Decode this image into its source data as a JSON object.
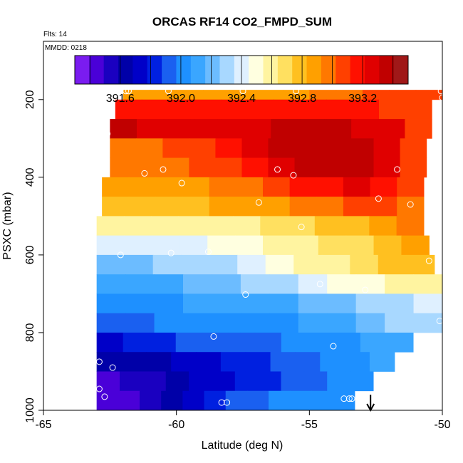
{
  "chart_data": {
    "type": "heatmap",
    "title": "ORCAS RF14 CO2_FMPD_SUM",
    "annotation_flts": "Flts: 14",
    "annotation_mmdd": "MMDD: 0218",
    "xlabel": "Latitude (deg N)",
    "ylabel": "PSXC (mbar)",
    "xlim": [
      -65,
      -50
    ],
    "ylim": [
      1000,
      50
    ],
    "x_ticks": [
      -65,
      -60,
      -55,
      -50
    ],
    "x_tick_labels": [
      "-65",
      "-60",
      "-55",
      "-50"
    ],
    "y_ticks": [
      200,
      400,
      600,
      800,
      1000
    ],
    "y_tick_labels": [
      "200",
      "400",
      "600",
      "800",
      "1000"
    ],
    "colorbar": {
      "range": [
        391.3,
        393.5
      ],
      "ticks": [
        391.6,
        392.0,
        392.4,
        392.8,
        393.2
      ],
      "tick_labels": [
        "391.6",
        "392.0",
        "392.4",
        "392.8",
        "393.2"
      ],
      "colors": [
        "#7a1cf0",
        "#4a00d8",
        "#1a00c0",
        "#0000a8",
        "#0000c8",
        "#0020e0",
        "#1a60f0",
        "#1e90ff",
        "#3aa6ff",
        "#6cbcff",
        "#a8d8ff",
        "#dff0ff",
        "#ffffe0",
        "#fff4a0",
        "#ffe060",
        "#ffc020",
        "#ffa000",
        "#ff7800",
        "#ff4000",
        "#ff1000",
        "#e00000",
        "#c00000",
        "#a01818"
      ]
    },
    "rows": [
      {
        "p_top": 175,
        "p_bottom": 200,
        "x_start": -62.0,
        "x_end": -50.0,
        "levels": [
          392.9,
          392.85,
          392.85,
          392.85,
          392.9,
          392.9,
          392.9,
          392.95,
          393.0,
          393.05,
          393.1,
          393.1
        ]
      },
      {
        "p_top": 200,
        "p_bottom": 250,
        "x_start": -62.3,
        "x_end": -50.4,
        "levels": [
          393.2,
          393.15,
          393.15,
          393.2,
          393.2,
          393.2,
          393.2,
          393.2,
          393.2,
          393.15,
          393.1,
          393.05
        ]
      },
      {
        "p_top": 250,
        "p_bottom": 300,
        "x_start": -62.5,
        "x_end": -50.4,
        "levels": [
          393.35,
          393.3,
          393.3,
          393.3,
          393.3,
          393.3,
          393.35,
          393.35,
          393.35,
          393.3,
          393.25,
          393.1
        ]
      },
      {
        "p_top": 300,
        "p_bottom": 350,
        "x_start": -62.5,
        "x_end": -50.6,
        "levels": [
          393.0,
          393.0,
          393.05,
          393.1,
          393.15,
          393.25,
          393.35,
          393.4,
          393.4,
          393.35,
          393.25,
          393.05
        ]
      },
      {
        "p_top": 350,
        "p_bottom": 400,
        "x_start": -62.5,
        "x_end": -50.6,
        "levels": [
          392.95,
          392.95,
          393.0,
          393.05,
          393.1,
          393.2,
          393.3,
          393.35,
          393.4,
          393.4,
          393.3,
          393.1
        ]
      },
      {
        "p_top": 400,
        "p_bottom": 450,
        "x_start": -62.8,
        "x_end": -50.7,
        "levels": [
          392.85,
          392.85,
          392.9,
          392.9,
          392.95,
          393.0,
          393.05,
          393.15,
          393.2,
          393.25,
          393.2,
          393.05
        ]
      },
      {
        "p_top": 450,
        "p_bottom": 500,
        "x_start": -62.8,
        "x_end": -50.7,
        "levels": [
          392.75,
          392.75,
          392.8,
          392.8,
          392.85,
          392.85,
          392.9,
          392.95,
          393.0,
          393.05,
          393.1,
          393.0
        ]
      },
      {
        "p_top": 500,
        "p_bottom": 550,
        "x_start": -63.0,
        "x_end": -50.7,
        "levels": [
          392.6,
          392.6,
          392.6,
          392.6,
          392.6,
          392.6,
          392.65,
          392.7,
          392.75,
          392.8,
          392.9,
          392.95
        ]
      },
      {
        "p_top": 550,
        "p_bottom": 600,
        "x_start": -63.0,
        "x_end": -50.5,
        "levels": [
          392.4,
          392.4,
          392.4,
          392.4,
          392.45,
          392.5,
          392.55,
          392.6,
          392.65,
          392.7,
          392.8,
          392.9
        ]
      },
      {
        "p_top": 600,
        "p_bottom": 650,
        "x_start": -63.0,
        "x_end": -50.3,
        "levels": [
          392.25,
          392.25,
          392.3,
          392.3,
          392.35,
          392.4,
          392.45,
          392.55,
          392.6,
          392.7,
          392.75,
          392.8
        ]
      },
      {
        "p_top": 650,
        "p_bottom": 700,
        "x_start": -63.0,
        "x_end": -50.0,
        "levels": [
          392.1,
          392.1,
          392.15,
          392.2,
          392.25,
          392.3,
          392.35,
          392.4,
          392.45,
          392.5,
          392.55,
          392.6
        ]
      },
      {
        "p_top": 700,
        "p_bottom": 750,
        "x_start": -63.0,
        "x_end": -50.0,
        "levels": [
          392.05,
          392.05,
          392.05,
          392.1,
          392.1,
          392.15,
          392.15,
          392.2,
          392.25,
          392.3,
          392.35,
          392.4
        ]
      },
      {
        "p_top": 750,
        "p_bottom": 800,
        "x_start": -63.0,
        "x_end": -50.0,
        "levels": [
          391.95,
          391.95,
          392.0,
          392.0,
          392.0,
          392.05,
          392.05,
          392.1,
          392.15,
          392.2,
          392.3,
          392.35
        ]
      },
      {
        "p_top": 800,
        "p_bottom": 850,
        "x_start": -63.0,
        "x_end": -51.1,
        "levels": [
          391.75,
          391.8,
          391.85,
          391.9,
          391.9,
          391.95,
          391.95,
          392.0,
          392.05,
          392.05,
          392.1,
          392.1
        ]
      },
      {
        "p_top": 850,
        "p_bottom": 900,
        "x_start": -63.0,
        "x_end": -51.8,
        "levels": [
          391.6,
          391.65,
          391.65,
          391.7,
          391.75,
          391.8,
          391.85,
          391.9,
          391.95,
          392.0,
          392.05,
          392.1
        ]
      },
      {
        "p_top": 900,
        "p_bottom": 950,
        "x_start": -63.0,
        "x_end": -52.6,
        "levels": [
          391.45,
          391.5,
          391.55,
          391.6,
          391.7,
          391.75,
          391.8,
          391.85,
          391.9,
          391.95,
          392.0,
          392.05
        ]
      },
      {
        "p_top": 950,
        "p_bottom": 1000,
        "x_start": -63.0,
        "x_end": -53.3,
        "levels": [
          391.4,
          391.45,
          391.55,
          391.65,
          391.75,
          391.85,
          391.9,
          391.95,
          392.0,
          392.0,
          392.0,
          392.05
        ]
      }
    ],
    "observations": [
      {
        "lat": -61.9,
        "p": 178
      },
      {
        "lat": -61.8,
        "p": 178
      },
      {
        "lat": -60.3,
        "p": 178
      },
      {
        "lat": -57.5,
        "p": 178
      },
      {
        "lat": -55.5,
        "p": 178
      },
      {
        "lat": -50.05,
        "p": 178
      },
      {
        "lat": -50.0,
        "p": 195
      },
      {
        "lat": -62.6,
        "p": 288
      },
      {
        "lat": -50.0,
        "p": 292
      },
      {
        "lat": -61.2,
        "p": 390
      },
      {
        "lat": -60.5,
        "p": 380
      },
      {
        "lat": -56.2,
        "p": 380
      },
      {
        "lat": -55.6,
        "p": 395
      },
      {
        "lat": -51.7,
        "p": 380
      },
      {
        "lat": -59.8,
        "p": 415
      },
      {
        "lat": -52.4,
        "p": 455
      },
      {
        "lat": -51.2,
        "p": 470
      },
      {
        "lat": -56.9,
        "p": 465
      },
      {
        "lat": -55.3,
        "p": 528
      },
      {
        "lat": -60.2,
        "p": 595
      },
      {
        "lat": -58.8,
        "p": 592
      },
      {
        "lat": -62.1,
        "p": 600
      },
      {
        "lat": -50.5,
        "p": 615
      },
      {
        "lat": -54.6,
        "p": 675
      },
      {
        "lat": -57.4,
        "p": 702
      },
      {
        "lat": -52.9,
        "p": 690
      },
      {
        "lat": -50.1,
        "p": 770
      },
      {
        "lat": -58.6,
        "p": 810
      },
      {
        "lat": -54.1,
        "p": 835
      },
      {
        "lat": -62.9,
        "p": 875
      },
      {
        "lat": -62.4,
        "p": 890
      },
      {
        "lat": -62.9,
        "p": 945
      },
      {
        "lat": -62.7,
        "p": 965
      },
      {
        "lat": -58.3,
        "p": 980
      },
      {
        "lat": -58.1,
        "p": 980
      },
      {
        "lat": -53.7,
        "p": 970
      },
      {
        "lat": -53.5,
        "p": 970
      },
      {
        "lat": -53.4,
        "p": 970
      }
    ],
    "arrow": {
      "lat": -52.7,
      "p_from": 960,
      "p_to": 1000
    }
  }
}
